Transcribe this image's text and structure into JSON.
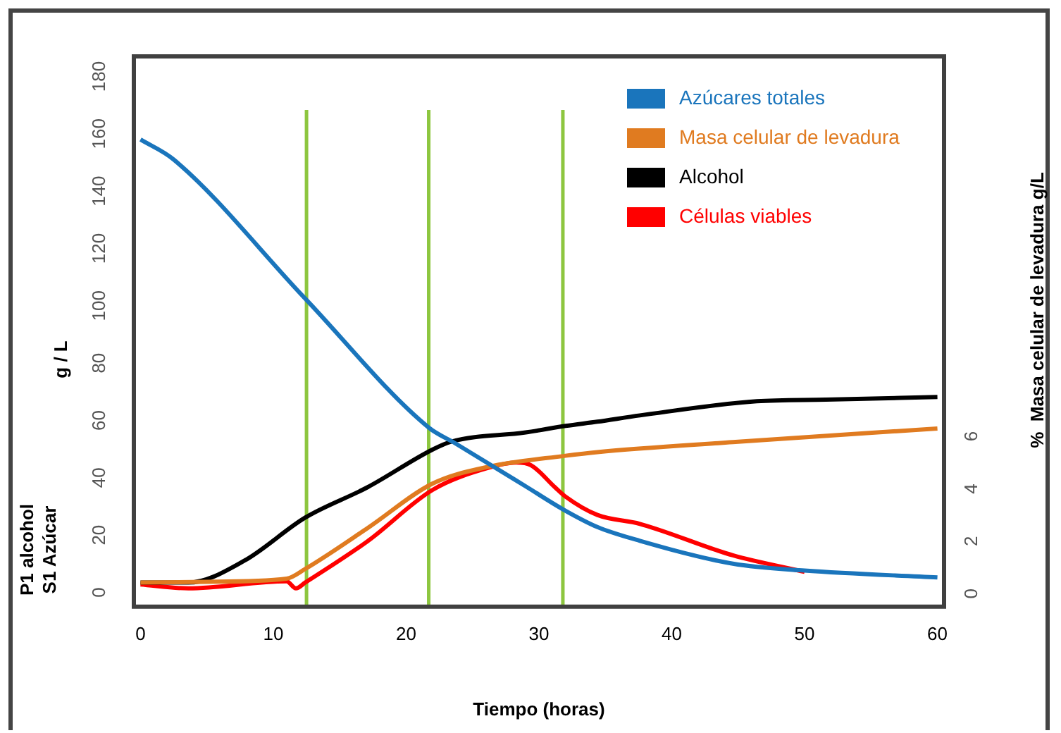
{
  "chart_data": {
    "type": "line",
    "xlabel": "Tiempo (horas)",
    "ylabel": "g / L",
    "y2label": "%  Masa celular de levadura g/L",
    "annotations": [
      "P1 alcohol",
      "S1 Azúcar"
    ],
    "xlim": [
      -0.5,
      60.5
    ],
    "xticks": [
      0,
      10,
      20,
      30,
      40,
      50,
      60
    ],
    "ylim": [
      -5,
      187
    ],
    "yticks": [
      0,
      20,
      40,
      60,
      80,
      100,
      120,
      140,
      160,
      180
    ],
    "y2lim": [
      -0.5,
      20.5
    ],
    "y2ticks": [
      0,
      2,
      4,
      6
    ],
    "legend": "top right",
    "series": [
      {
        "name": "Azúcares totales",
        "color": "#1a75bc",
        "x": [
          0,
          2.5,
          12.4,
          21.7,
          23.7,
          29,
          31.8,
          34.4,
          37.6,
          44.6,
          50,
          60
        ],
        "values": [
          158,
          151,
          102.5,
          57.5,
          52,
          37,
          29,
          22.8,
          18,
          10,
          7.6,
          5.2
        ]
      },
      {
        "name": "Masa celular de levadura",
        "color": "#e07b20",
        "axis": "y2",
        "x": [
          0,
          5,
          11,
          12.4,
          17.1,
          22,
          26.2,
          32,
          34.4,
          44.6,
          60
        ],
        "values": [
          0.42,
          0.45,
          0.57,
          0.94,
          2.5,
          4.2,
          4.84,
          5.26,
          5.4,
          5.78,
          6.3
        ]
      },
      {
        "name": "Alcohol",
        "color": "#000000",
        "axis": "y2",
        "x": [
          0,
          3.6,
          7.8,
          12.4,
          17.1,
          22,
          23.4,
          29,
          32,
          34.4,
          37.6,
          46.4,
          51.6,
          60
        ],
        "values": [
          0.42,
          0.42,
          1.25,
          2.9,
          4.06,
          5.5,
          5.8,
          6.15,
          6.4,
          6.56,
          6.8,
          7.34,
          7.4,
          7.5
        ]
      },
      {
        "name": "Células viables",
        "color": "#ff0000",
        "axis": "y2",
        "x": [
          0,
          3.6,
          11,
          11.7,
          12.4,
          17.1,
          22,
          26.2,
          28.3,
          29.4,
          31.2,
          32,
          34.4,
          37.6,
          44.6,
          50
        ],
        "values": [
          0.35,
          0.2,
          0.47,
          0.2,
          0.42,
          2.0,
          3.96,
          4.8,
          5.0,
          4.9,
          4.06,
          3.7,
          3.0,
          2.66,
          1.46,
          0.83
        ]
      }
    ],
    "ref_lines": [
      {
        "axis": "x",
        "value": 12.5,
        "color": "#8dc63f"
      },
      {
        "axis": "x",
        "value": 21.7,
        "color": "#8dc63f"
      },
      {
        "axis": "x",
        "value": 31.8,
        "color": "#8dc63f"
      }
    ]
  }
}
